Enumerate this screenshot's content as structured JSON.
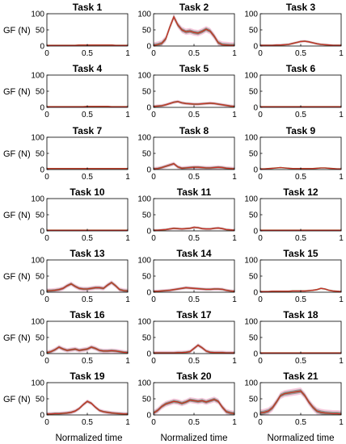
{
  "chart_data": {
    "type": "line",
    "ylabel": "GF (N)",
    "xlabel": "Normalized time",
    "xlim": [
      0,
      1
    ],
    "ylim": [
      0,
      100
    ],
    "x_ticks": [
      "0",
      "0.5",
      "1"
    ],
    "y_ticks": [
      "0",
      "50",
      "100"
    ],
    "colors": {
      "mean_line": "#d7262b",
      "band_outer": "#f0a7c6",
      "band_inner": "#8c8c8c",
      "inner_line": "#5f8a2d"
    },
    "x": [
      0,
      0.05,
      0.1,
      0.15,
      0.2,
      0.25,
      0.3,
      0.35,
      0.4,
      0.45,
      0.5,
      0.55,
      0.6,
      0.65,
      0.7,
      0.75,
      0.8,
      0.85,
      0.9,
      0.95,
      1
    ],
    "panels": [
      {
        "title": "Task 1",
        "mean": [
          2,
          2,
          2,
          2,
          2,
          2,
          2,
          2,
          3,
          3,
          3,
          3,
          3,
          3,
          3,
          3,
          3,
          2,
          2,
          2,
          2
        ],
        "spread": 2
      },
      {
        "title": "Task 2",
        "mean": [
          2,
          4,
          8,
          22,
          58,
          90,
          65,
          50,
          44,
          46,
          42,
          40,
          45,
          52,
          46,
          30,
          10,
          4,
          3,
          2,
          2
        ],
        "spread": 10
      },
      {
        "title": "Task 3",
        "mean": [
          2,
          2,
          2,
          2,
          3,
          3,
          4,
          5,
          8,
          11,
          14,
          15,
          13,
          10,
          7,
          5,
          4,
          3,
          2,
          2,
          2
        ],
        "spread": 4
      },
      {
        "title": "Task 4",
        "mean": [
          2,
          2,
          2,
          2,
          2,
          2,
          2,
          2,
          2,
          2,
          3,
          3,
          3,
          3,
          3,
          3,
          2,
          2,
          2,
          2,
          2
        ],
        "spread": 2
      },
      {
        "title": "Task 5",
        "mean": [
          3,
          4,
          5,
          8,
          12,
          16,
          18,
          14,
          12,
          11,
          10,
          10,
          11,
          12,
          13,
          12,
          10,
          8,
          6,
          4,
          3
        ],
        "spread": 5
      },
      {
        "title": "Task 6",
        "mean": [
          2,
          2,
          2,
          2,
          2,
          2,
          2,
          2,
          2,
          2,
          2,
          2,
          2,
          2,
          2,
          2,
          2,
          2,
          2,
          2,
          2
        ],
        "spread": 2
      },
      {
        "title": "Task 7",
        "mean": [
          3,
          3,
          3,
          3,
          3,
          3,
          3,
          3,
          3,
          3,
          3,
          3,
          3,
          3,
          3,
          3,
          3,
          3,
          3,
          3,
          3
        ],
        "spread": 2
      },
      {
        "title": "Task 8",
        "mean": [
          2,
          3,
          6,
          10,
          14,
          18,
          8,
          4,
          5,
          6,
          7,
          7,
          6,
          5,
          5,
          6,
          7,
          6,
          4,
          3,
          2
        ],
        "spread": 6
      },
      {
        "title": "Task 9",
        "mean": [
          2,
          2,
          3,
          4,
          5,
          6,
          5,
          4,
          3,
          3,
          3,
          3,
          3,
          3,
          4,
          5,
          5,
          4,
          3,
          2,
          2
        ],
        "spread": 2
      },
      {
        "title": "Task 10",
        "mean": [
          2,
          2,
          2,
          2,
          2,
          2,
          2,
          2,
          2,
          2,
          2,
          2,
          2,
          2,
          2,
          2,
          2,
          2,
          2,
          2,
          2
        ],
        "spread": 2
      },
      {
        "title": "Task 11",
        "mean": [
          2,
          2,
          3,
          4,
          6,
          8,
          7,
          6,
          7,
          8,
          11,
          10,
          7,
          6,
          6,
          8,
          9,
          7,
          4,
          3,
          2
        ],
        "spread": 4
      },
      {
        "title": "Task 12",
        "mean": [
          2,
          2,
          2,
          2,
          2,
          2,
          2,
          2,
          2,
          2,
          2,
          2,
          2,
          2,
          2,
          2,
          2,
          2,
          2,
          2,
          2
        ],
        "spread": 2
      },
      {
        "title": "Task 13",
        "mean": [
          5,
          5,
          6,
          8,
          12,
          20,
          26,
          18,
          12,
          10,
          10,
          12,
          14,
          14,
          12,
          22,
          30,
          20,
          8,
          5,
          4
        ],
        "spread": 7
      },
      {
        "title": "Task 14",
        "mean": [
          3,
          3,
          4,
          5,
          6,
          8,
          10,
          12,
          14,
          13,
          12,
          11,
          10,
          9,
          9,
          10,
          10,
          9,
          6,
          4,
          3
        ],
        "spread": 5
      },
      {
        "title": "Task 15",
        "mean": [
          2,
          2,
          2,
          3,
          3,
          3,
          3,
          3,
          4,
          4,
          4,
          4,
          5,
          6,
          8,
          12,
          10,
          6,
          4,
          3,
          2
        ],
        "spread": 3
      },
      {
        "title": "Task 16",
        "mean": [
          3,
          6,
          12,
          20,
          14,
          10,
          12,
          14,
          10,
          12,
          14,
          20,
          16,
          10,
          8,
          8,
          9,
          8,
          6,
          4,
          3
        ],
        "spread": 7
      },
      {
        "title": "Task 17",
        "mean": [
          2,
          2,
          2,
          2,
          2,
          2,
          3,
          3,
          4,
          6,
          16,
          26,
          18,
          8,
          4,
          3,
          3,
          3,
          2,
          2,
          2
        ],
        "spread": 6
      },
      {
        "title": "Task 18",
        "mean": [
          2,
          2,
          2,
          2,
          2,
          2,
          2,
          2,
          2,
          2,
          2,
          2,
          2,
          2,
          2,
          2,
          2,
          2,
          2,
          2,
          2
        ],
        "spread": 2
      },
      {
        "title": "Task 19",
        "mean": [
          3,
          3,
          4,
          4,
          5,
          6,
          8,
          12,
          20,
          32,
          42,
          36,
          24,
          14,
          10,
          8,
          6,
          5,
          4,
          3,
          3
        ],
        "spread": 6
      },
      {
        "title": "Task 20",
        "mean": [
          6,
          14,
          26,
          34,
          38,
          42,
          40,
          36,
          40,
          46,
          44,
          42,
          44,
          40,
          44,
          48,
          42,
          24,
          10,
          6,
          4
        ],
        "spread": 9
      },
      {
        "title": "Task 21",
        "mean": [
          6,
          8,
          12,
          22,
          40,
          60,
          66,
          68,
          70,
          72,
          74,
          60,
          40,
          24,
          12,
          8,
          6,
          5,
          4,
          4,
          3
        ],
        "spread": 11
      }
    ]
  }
}
